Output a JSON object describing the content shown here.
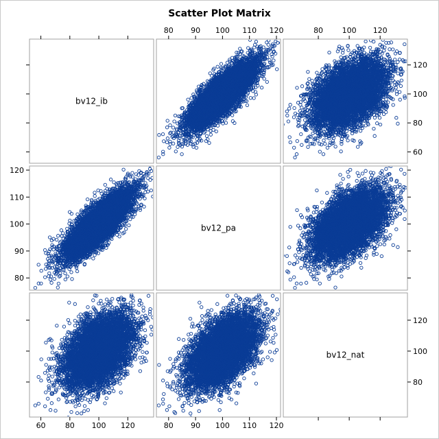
{
  "chart_data": {
    "type": "scatter",
    "title": "Scatter Plot Matrix",
    "variables": [
      "bv12_ib",
      "bv12_pa",
      "bv12_nat"
    ],
    "ranges": {
      "bv12_ib": [
        55,
        135
      ],
      "bv12_pa": [
        77,
        120
      ],
      "bv12_nat": [
        60,
        135
      ]
    },
    "ticks": {
      "bv12_ib": [
        60,
        80,
        100,
        120
      ],
      "bv12_pa": [
        80,
        90,
        100,
        110,
        120
      ],
      "bv12_nat": [
        80,
        100,
        120
      ]
    },
    "point_cloud": {
      "n": 6500,
      "means": [
        100,
        100,
        100
      ],
      "sds": [
        12,
        6.5,
        12
      ],
      "correlations": [
        [
          1,
          0.82,
          0.45
        ],
        [
          0.82,
          1,
          0.52
        ],
        [
          0.45,
          0.52,
          1
        ]
      ]
    },
    "marker": "open-circle",
    "grid": false,
    "legend": "none"
  },
  "colors": {
    "marker": "#0a3c96",
    "panel_border": "#a0a0a0",
    "axis": "#000000"
  }
}
